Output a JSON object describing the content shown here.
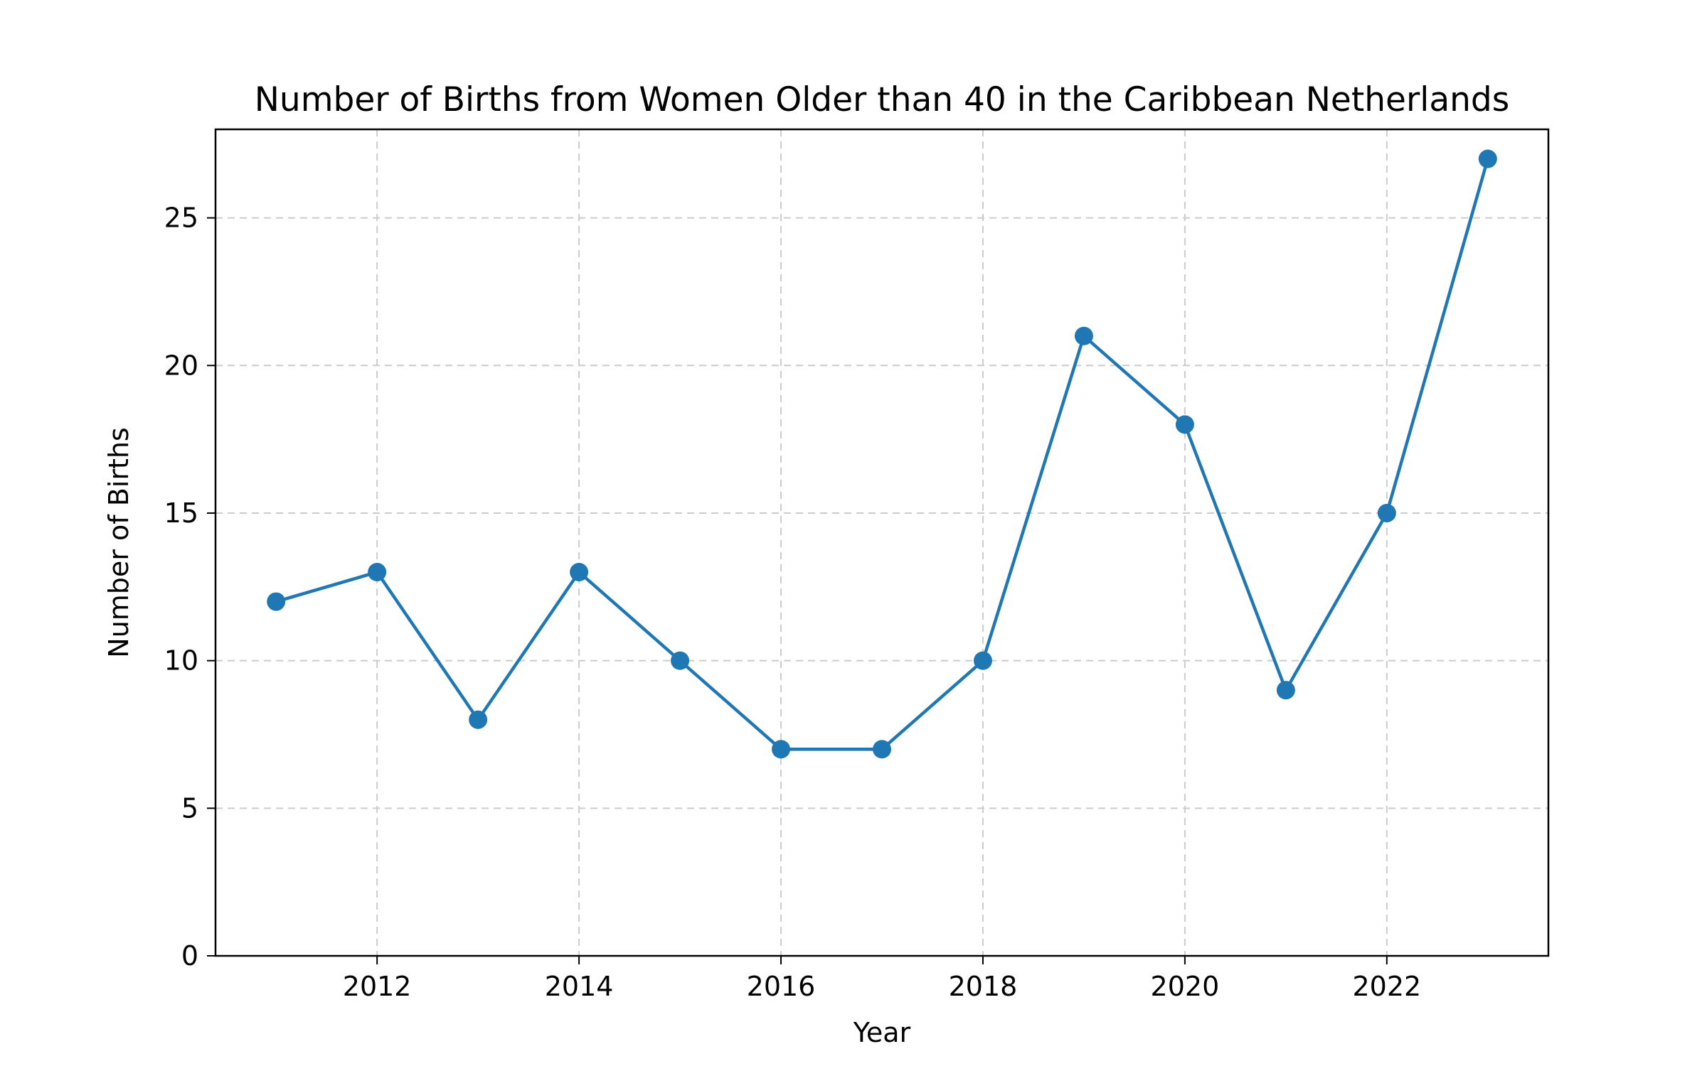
{
  "chart_data": {
    "type": "line",
    "title": "Number of Births from Women Older than 40 in the Caribbean Netherlands",
    "xlabel": "Year",
    "ylabel": "Number of Births",
    "x": [
      2011,
      2012,
      2013,
      2014,
      2015,
      2016,
      2017,
      2018,
      2019,
      2020,
      2021,
      2022,
      2023
    ],
    "series": [
      {
        "values": [
          12,
          13,
          8,
          13,
          10,
          7,
          7,
          10,
          21,
          18,
          9,
          15,
          27
        ],
        "color": "#1f77b4",
        "marker": "circle"
      }
    ],
    "xlim": [
      2010.4,
      2023.6
    ],
    "ylim": [
      0,
      28
    ],
    "xticks": [
      2012,
      2014,
      2016,
      2018,
      2020,
      2022
    ],
    "xtick_labels": [
      "2012",
      "2014",
      "2016",
      "2018",
      "2020",
      "2022"
    ],
    "yticks": [
      0,
      5,
      10,
      15,
      20,
      25
    ],
    "ytick_labels": [
      "0",
      "5",
      "10",
      "15",
      "20",
      "25"
    ],
    "grid": true,
    "legend": "none"
  }
}
